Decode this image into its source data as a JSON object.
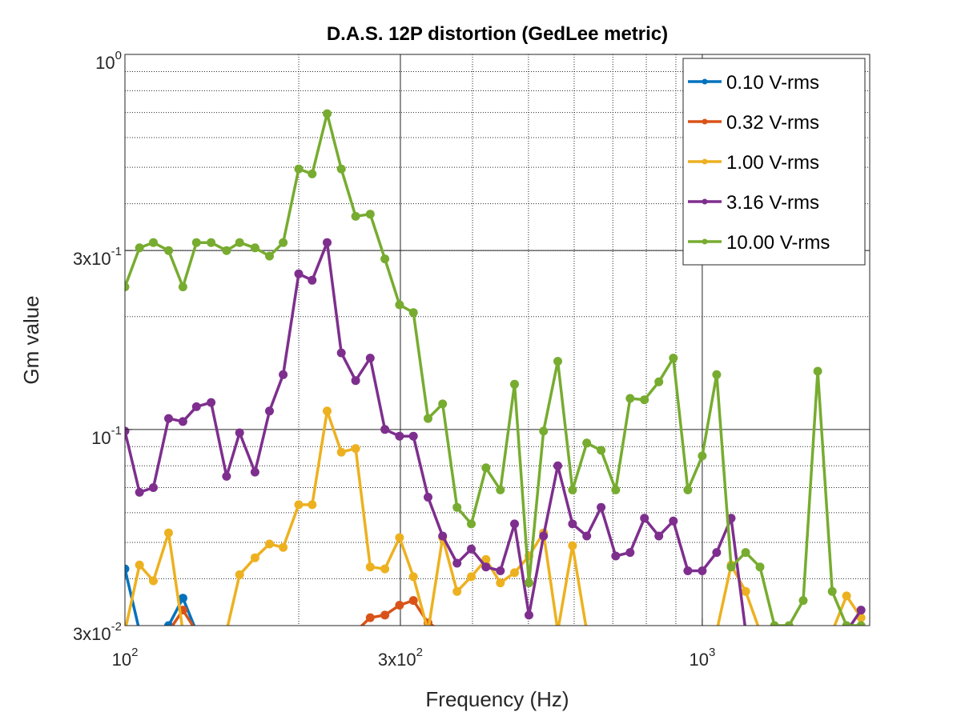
{
  "chart_data": {
    "type": "line",
    "title": "D.A.S. 12P distortion (GedLee metric)",
    "xlabel": "Frequency (Hz)",
    "ylabel": "Gm value",
    "xscale": "log",
    "yscale": "log",
    "xlim": [
      100,
      1950
    ],
    "ylim": [
      0.03,
      1
    ],
    "xticks": [
      {
        "value": 100,
        "base": "10",
        "exp": "2"
      },
      {
        "value": 300,
        "base": "3x10",
        "exp": "2"
      },
      {
        "value": 1000,
        "base": "10",
        "exp": "3"
      }
    ],
    "yticks": [
      {
        "value": 0.03,
        "base": "3x10",
        "exp": "-2"
      },
      {
        "value": 0.1,
        "base": "10",
        "exp": "-1"
      },
      {
        "value": 0.3,
        "base": "3x10",
        "exp": "-1"
      },
      {
        "value": 1,
        "base": "10",
        "exp": "0"
      }
    ],
    "grid": true,
    "legend_position": "top-right",
    "x": [
      100,
      106,
      112,
      119,
      126,
      133,
      141,
      150,
      158,
      168,
      178,
      188,
      200,
      211,
      224,
      237,
      251,
      266,
      282,
      299,
      316,
      335,
      355,
      376,
      398,
      422,
      447,
      473,
      501,
      531,
      562,
      596,
      631,
      668,
      708,
      750,
      794,
      841,
      891,
      944,
      1000,
      1059,
      1122,
      1189,
      1259,
      1334,
      1413,
      1496,
      1585,
      1679,
      1778,
      1884
    ],
    "series": [
      {
        "name": "0.10 V-rms",
        "color": "#0072bd",
        "values": [
          0.0425,
          0.029,
          null,
          0.03,
          0.0355,
          null,
          null,
          null,
          null,
          null,
          null,
          null,
          null,
          null,
          null,
          null,
          null,
          null,
          null,
          null,
          null,
          null,
          null,
          null,
          null,
          null,
          null,
          null,
          null,
          null,
          null,
          null,
          null,
          null,
          null,
          null,
          null,
          null,
          null,
          null,
          null,
          null,
          null,
          null,
          null,
          null,
          null,
          null,
          null,
          null,
          null,
          null
        ]
      },
      {
        "name": "0.32 V-rms",
        "color": "#d95319",
        "values": [
          null,
          null,
          null,
          null,
          0.033,
          null,
          null,
          null,
          null,
          null,
          null,
          null,
          null,
          null,
          null,
          null,
          null,
          0.0315,
          0.032,
          0.034,
          0.035,
          0.0305,
          null,
          null,
          null,
          null,
          null,
          null,
          null,
          null,
          null,
          null,
          null,
          null,
          null,
          null,
          null,
          null,
          null,
          null,
          null,
          null,
          null,
          null,
          null,
          null,
          null,
          null,
          null,
          null,
          null,
          null
        ]
      },
      {
        "name": "1.00 V-rms",
        "color": "#edb120",
        "values": [
          0.029,
          0.0435,
          0.0395,
          0.053,
          null,
          null,
          null,
          0.029,
          0.041,
          0.0455,
          0.0495,
          0.0485,
          0.063,
          0.063,
          0.112,
          0.087,
          0.089,
          0.043,
          0.0425,
          0.0515,
          0.0405,
          0.029,
          0.0515,
          0.037,
          0.0405,
          0.045,
          0.039,
          0.0415,
          0.046,
          0.053,
          0.029,
          0.049,
          null,
          null,
          null,
          null,
          null,
          null,
          null,
          null,
          null,
          null,
          0.0435,
          0.037,
          null,
          null,
          null,
          null,
          null,
          null,
          0.036,
          0.0315
        ]
      },
      {
        "name": "3.16 V-rms",
        "color": "#7e2f8e",
        "values": [
          0.099,
          0.068,
          0.07,
          0.107,
          0.105,
          0.115,
          0.118,
          0.075,
          0.098,
          0.077,
          0.112,
          0.14,
          0.26,
          0.25,
          0.315,
          0.16,
          0.135,
          0.155,
          0.1,
          0.096,
          0.096,
          0.066,
          0.052,
          0.044,
          0.048,
          0.043,
          0.042,
          0.056,
          0.032,
          0.052,
          0.08,
          0.056,
          0.052,
          0.062,
          0.046,
          0.047,
          0.058,
          0.052,
          0.057,
          0.042,
          0.042,
          0.047,
          0.058,
          0.029,
          null,
          null,
          null,
          null,
          null,
          null,
          null,
          0.033
        ]
      },
      {
        "name": "10.00 V-rms",
        "color": "#77ac30",
        "values": [
          0.24,
          0.305,
          0.315,
          0.3,
          0.24,
          0.315,
          0.315,
          0.3,
          0.315,
          0.305,
          0.29,
          0.315,
          0.495,
          0.48,
          0.695,
          0.495,
          0.37,
          0.375,
          0.285,
          0.215,
          0.205,
          0.107,
          0.117,
          0.062,
          0.056,
          0.079,
          0.069,
          0.132,
          0.039,
          0.099,
          0.152,
          0.069,
          0.092,
          0.088,
          0.069,
          0.121,
          0.12,
          0.134,
          0.155,
          0.069,
          0.085,
          0.14,
          0.043,
          0.047,
          0.043,
          0.03,
          0.03,
          0.035,
          0.143,
          0.037,
          0.03,
          0.03
        ]
      }
    ]
  }
}
